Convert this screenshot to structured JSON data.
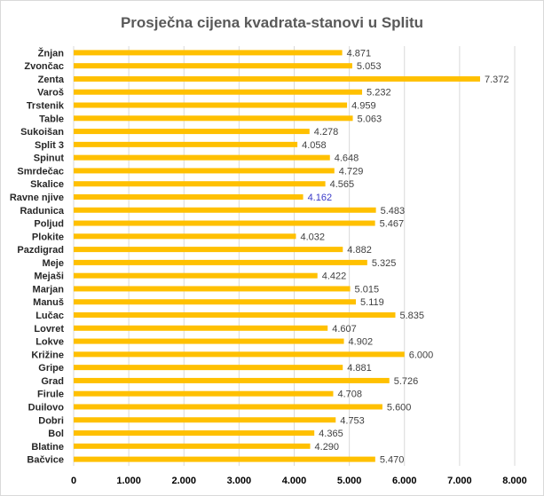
{
  "chart_data": {
    "type": "bar",
    "orientation": "horizontal",
    "title": "Prosječna cijena kvadrata-stanovi u Splitu",
    "xlabel": "",
    "ylabel": "",
    "xlim": [
      0,
      8000
    ],
    "x_ticks": [
      "0",
      "1.000",
      "2.000",
      "3.000",
      "4.000",
      "5.000",
      "6.000",
      "7.000",
      "8.000"
    ],
    "grid": "vertical",
    "legend": "none",
    "bar_color": "#ffc000",
    "highlight_label_color": "#3a3ac8",
    "categories": [
      "Žnjan",
      "Zvončac",
      "Zenta",
      "Varoš",
      "Trstenik",
      "Table",
      "Sukoišan",
      "Split 3",
      "Spinut",
      "Smrdečac",
      "Skalice",
      "Ravne njive",
      "Radunica",
      "Poljud",
      "Plokite",
      "Pazdigrad",
      "Meje",
      "Mejaši",
      "Marjan",
      "Manuš",
      "Lučac",
      "Lovret",
      "Lokve",
      "Križine",
      "Gripe",
      "Grad",
      "Firule",
      "Duilovo",
      "Dobri",
      "Bol",
      "Blatine",
      "Bačvice"
    ],
    "values": [
      4871,
      5053,
      7372,
      5232,
      4959,
      5063,
      4278,
      4058,
      4648,
      4729,
      4565,
      4162,
      5483,
      5467,
      4032,
      4882,
      5325,
      4422,
      5015,
      5119,
      5835,
      4607,
      4902,
      6000,
      4881,
      5726,
      4708,
      5600,
      4753,
      4365,
      4290,
      5470
    ],
    "value_labels": [
      "4.871",
      "5.053",
      "7.372",
      "5.232",
      "4.959",
      "5.063",
      "4.278",
      "4.058",
      "4.648",
      "4.729",
      "4.565",
      "4.162",
      "5.483",
      "5.467",
      "4.032",
      "4.882",
      "5.325",
      "4.422",
      "5.015",
      "5.119",
      "5.835",
      "4.607",
      "4.902",
      "6.000",
      "4.881",
      "5.726",
      "4.708",
      "5.600",
      "4.753",
      "4.365",
      "4.290",
      "5.470"
    ],
    "highlighted_category": "Ravne njive"
  }
}
